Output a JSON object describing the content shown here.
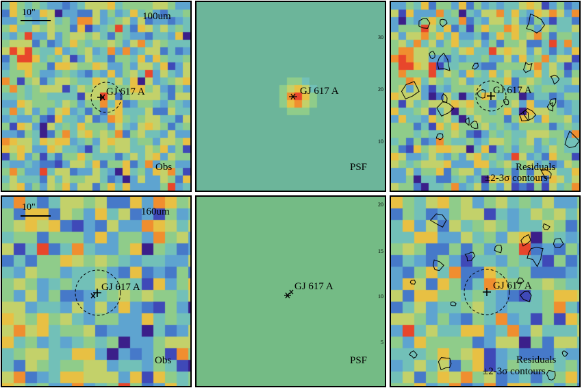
{
  "target_name": "GJ 617 A",
  "scale_bar_label": "10\"",
  "rows": [
    {
      "band": "100um",
      "panels": [
        {
          "kind": "obs",
          "label": "Obs"
        },
        {
          "kind": "psf",
          "label": "PSF"
        },
        {
          "kind": "res",
          "label_line1": "Residuals",
          "label_line2": "±2-3σ contours"
        }
      ],
      "psf_axis_ticks": [
        "30",
        "20",
        "10"
      ]
    },
    {
      "band": "160um",
      "panels": [
        {
          "kind": "obs",
          "label": "Obs"
        },
        {
          "kind": "psf",
          "label": "PSF"
        },
        {
          "kind": "res",
          "label_line1": "Residuals",
          "label_line2": "±2-3σ contours"
        }
      ],
      "psf_axis_ticks": [
        "20",
        "15",
        "10",
        "5"
      ]
    }
  ],
  "colors": {
    "colormap": [
      "#3b1f8a",
      "#3f49b8",
      "#4679c9",
      "#5ea4d0",
      "#72c0b8",
      "#8fcc8a",
      "#c3d16a",
      "#e8c043",
      "#f08e2f",
      "#e8462b"
    ],
    "psf_background": "#6cb59a",
    "psf_background_160": "#74bb85"
  }
}
